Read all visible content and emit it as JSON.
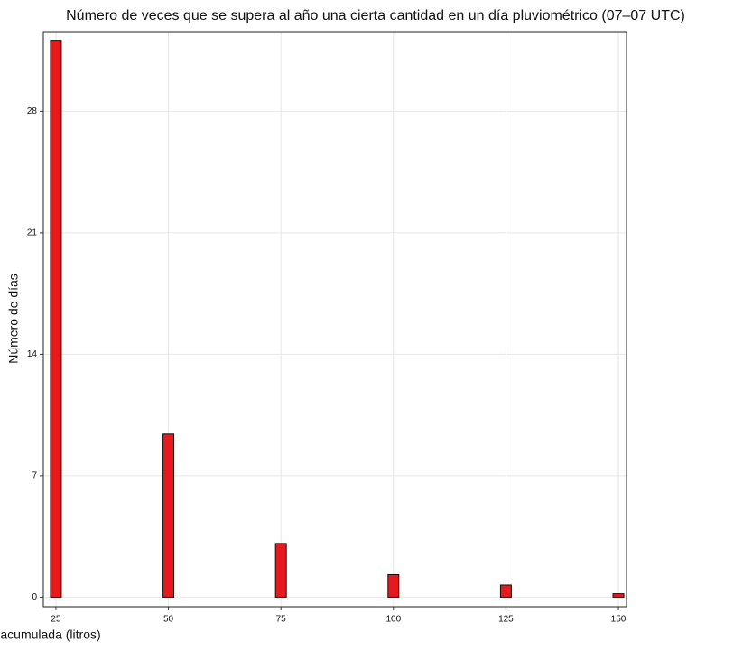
{
  "chart_data": {
    "type": "bar",
    "title": "Número de veces que se supera al año una cierta cantidad en un día pluviométrico (07–07 UTC)",
    "x_label": "Precipitación acumulada (litros)",
    "y_label": "Número de días",
    "x": [
      25,
      50,
      75,
      100,
      125,
      150
    ],
    "values": [
      32.1,
      9.4,
      3.1,
      1.3,
      0.7,
      0.2
    ],
    "color": "#e8191c",
    "xlim": [
      22.2,
      151.8
    ],
    "xticks": [
      25,
      50,
      75,
      100,
      125,
      150
    ],
    "ylim": [
      -0.55,
      32.6
    ],
    "yticks": [
      0,
      7,
      14,
      21,
      28
    ],
    "grid": true
  }
}
